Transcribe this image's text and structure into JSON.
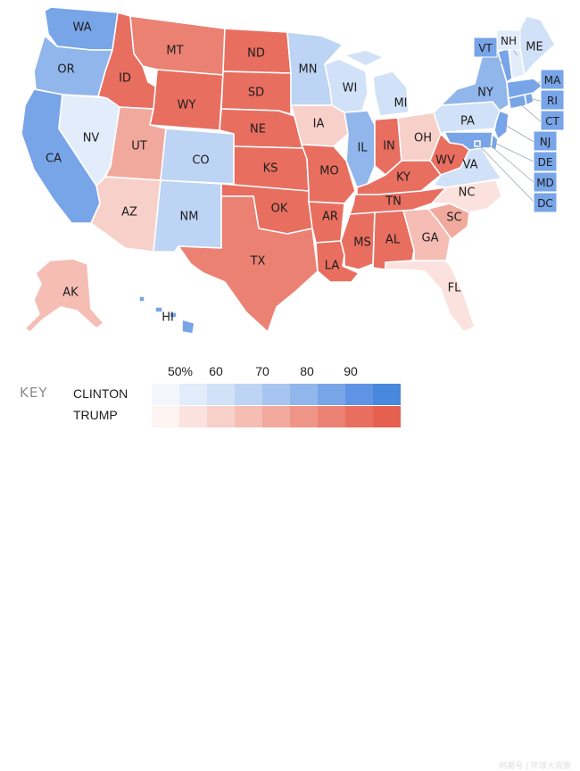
{
  "states": [
    {
      "code": "WA",
      "party": "clinton",
      "shade": 6
    },
    {
      "code": "OR",
      "party": "clinton",
      "shade": 5
    },
    {
      "code": "CA",
      "party": "clinton",
      "shade": 6
    },
    {
      "code": "NV",
      "party": "clinton",
      "shade": 1
    },
    {
      "code": "ID",
      "party": "trump",
      "shade": 7
    },
    {
      "code": "MT",
      "party": "trump",
      "shade": 6
    },
    {
      "code": "WY",
      "party": "trump",
      "shade": 7
    },
    {
      "code": "UT",
      "party": "trump",
      "shade": 4
    },
    {
      "code": "AZ",
      "party": "trump",
      "shade": 2
    },
    {
      "code": "CO",
      "party": "clinton",
      "shade": 3
    },
    {
      "code": "NM",
      "party": "clinton",
      "shade": 3
    },
    {
      "code": "ND",
      "party": "trump",
      "shade": 7
    },
    {
      "code": "SD",
      "party": "trump",
      "shade": 7
    },
    {
      "code": "NE",
      "party": "trump",
      "shade": 7
    },
    {
      "code": "KS",
      "party": "trump",
      "shade": 7
    },
    {
      "code": "OK",
      "party": "trump",
      "shade": 7
    },
    {
      "code": "TX",
      "party": "trump",
      "shade": 6
    },
    {
      "code": "MN",
      "party": "clinton",
      "shade": 3
    },
    {
      "code": "IA",
      "party": "trump",
      "shade": 2
    },
    {
      "code": "MO",
      "party": "trump",
      "shade": 7
    },
    {
      "code": "AR",
      "party": "trump",
      "shade": 7
    },
    {
      "code": "LA",
      "party": "trump",
      "shade": 7
    },
    {
      "code": "WI",
      "party": "clinton",
      "shade": 2
    },
    {
      "code": "IL",
      "party": "clinton",
      "shade": 5
    },
    {
      "code": "MI",
      "party": "clinton",
      "shade": 2
    },
    {
      "code": "IN",
      "party": "trump",
      "shade": 7
    },
    {
      "code": "OH",
      "party": "trump",
      "shade": 2
    },
    {
      "code": "KY",
      "party": "trump",
      "shade": 7
    },
    {
      "code": "TN",
      "party": "trump",
      "shade": 7
    },
    {
      "code": "MS",
      "party": "trump",
      "shade": 7
    },
    {
      "code": "AL",
      "party": "trump",
      "shade": 7
    },
    {
      "code": "GA",
      "party": "trump",
      "shade": 3
    },
    {
      "code": "FL",
      "party": "trump",
      "shade": 1
    },
    {
      "code": "SC",
      "party": "trump",
      "shade": 4
    },
    {
      "code": "NC",
      "party": "trump",
      "shade": 1
    },
    {
      "code": "VA",
      "party": "clinton",
      "shade": 2
    },
    {
      "code": "WV",
      "party": "trump",
      "shade": 7
    },
    {
      "code": "PA",
      "party": "clinton",
      "shade": 2
    },
    {
      "code": "NY",
      "party": "clinton",
      "shade": 5
    },
    {
      "code": "VT",
      "party": "clinton",
      "shade": 6
    },
    {
      "code": "NH",
      "party": "clinton",
      "shade": 1
    },
    {
      "code": "ME",
      "party": "clinton",
      "shade": 2
    },
    {
      "code": "MA",
      "party": "clinton",
      "shade": 6
    },
    {
      "code": "RI",
      "party": "clinton",
      "shade": 6
    },
    {
      "code": "CT",
      "party": "clinton",
      "shade": 6
    },
    {
      "code": "NJ",
      "party": "clinton",
      "shade": 6
    },
    {
      "code": "DE",
      "party": "clinton",
      "shade": 6
    },
    {
      "code": "MD",
      "party": "clinton",
      "shade": 6
    },
    {
      "code": "DC",
      "party": "clinton",
      "shade": 6
    },
    {
      "code": "AK",
      "party": "trump",
      "shade": 3
    },
    {
      "code": "HI",
      "party": "clinton",
      "shade": 6
    }
  ],
  "key": {
    "title": "KEY",
    "clinton_label": "CLINTON",
    "trump_label": "TRUMP",
    "ticks": [
      "50%",
      "60",
      "70",
      "80",
      "90"
    ],
    "clinton_colors": [
      "#f3f7fd",
      "#e2ecfa",
      "#d1e1f7",
      "#bdd4f4",
      "#a7c5f0",
      "#91b6ec",
      "#78a4e8",
      "#5f94e4",
      "#4888dd"
    ],
    "trump_colors": [
      "#fdf3f1",
      "#fbe2de",
      "#f8d0ca",
      "#f5bdb4",
      "#f1a99e",
      "#ee9588",
      "#eb8173",
      "#e86e60",
      "#e5604f"
    ]
  },
  "watermark": "网易号 | 环球大观察"
}
